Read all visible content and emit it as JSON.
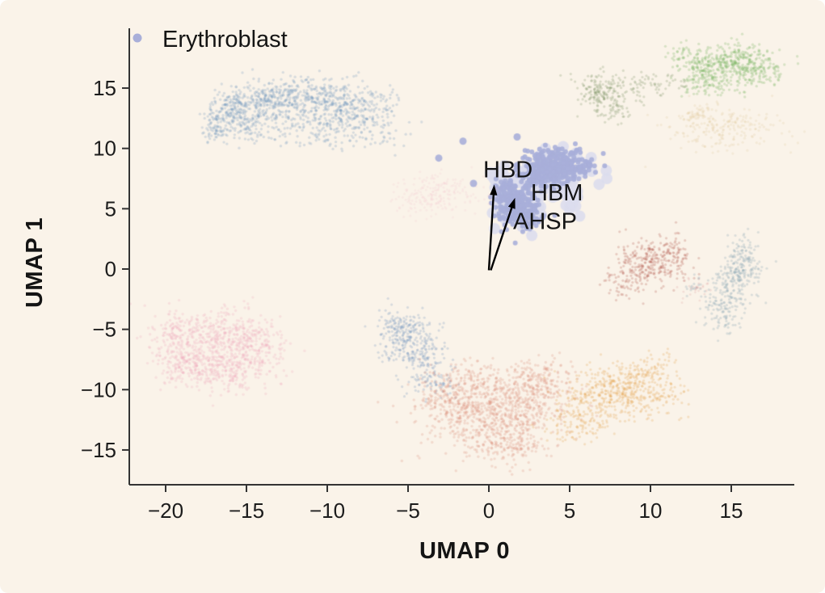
{
  "figure": {
    "background_color": "#faf3e9",
    "spine_color": "#333333"
  },
  "legend": {
    "items": [
      {
        "label": "Erythroblast",
        "marker_color": "#a9afd9"
      }
    ]
  },
  "chart_data": {
    "type": "scatter",
    "title": "",
    "xlabel": "UMAP 0",
    "ylabel": "UMAP 1",
    "xlim": [
      -22.3,
      18.9
    ],
    "ylim": [
      -17.9,
      20.0
    ],
    "grid": false,
    "legend_position": "upper-left",
    "x_ticks": {
      "values": [
        -20,
        -15,
        -10,
        -5,
        0,
        5,
        10,
        15
      ],
      "labels": [
        "−20",
        "−15",
        "−10",
        "−5",
        "0",
        "5",
        "10",
        "15"
      ]
    },
    "y_ticks": {
      "values": [
        15,
        10,
        5,
        0,
        -5,
        -10,
        -15
      ],
      "labels": [
        "15",
        "10",
        "5",
        "0",
        "−5",
        "−10",
        "−15"
      ]
    },
    "annotations": [
      {
        "label": "HBD",
        "x": -0.35,
        "y": 7.6
      },
      {
        "label": "HBM",
        "x": 2.6,
        "y": 5.7
      },
      {
        "label": "AHSP",
        "x": 1.5,
        "y": 3.3
      }
    ],
    "arrows": [
      {
        "x1": 0.0,
        "y1": -0.1,
        "x2": 0.33,
        "y2": 7.0
      },
      {
        "x1": 0.12,
        "y1": -0.1,
        "x2": 1.62,
        "y2": 5.9
      }
    ],
    "clusters": [
      {
        "name": "erythroblast-halo",
        "highlighted": true,
        "color": "#dbdded",
        "alpha": 0.9,
        "radius": 7,
        "blobs": [
          [
            3.9,
            8.3,
            1.4,
            0.9,
            60
          ],
          [
            1.7,
            5.2,
            0.9,
            1.1,
            40
          ],
          [
            3.0,
            6.5,
            1.0,
            0.9,
            30
          ],
          [
            5.0,
            5.9,
            0.6,
            0.5,
            12
          ],
          [
            0.6,
            7.6,
            0.5,
            0.5,
            15
          ]
        ]
      },
      {
        "name": "erythroblast",
        "highlighted": true,
        "color": "#a9afd9",
        "alpha": 0.9,
        "radius": 3,
        "blobs": [
          [
            4.1,
            8.5,
            1.1,
            0.65,
            350
          ],
          [
            2.9,
            7.6,
            0.5,
            0.5,
            60
          ],
          [
            1.7,
            5.3,
            0.7,
            1.0,
            220
          ],
          [
            2.5,
            4.3,
            0.5,
            0.4,
            40
          ],
          [
            1.1,
            6.6,
            0.35,
            0.4,
            40
          ]
        ],
        "outliers": [
          [
            -1.6,
            10.6
          ],
          [
            -3.1,
            9.2
          ],
          [
            -0.95,
            7.1
          ],
          [
            1.75,
            10.95
          ]
        ]
      },
      {
        "name": "background-cluster-blue-arc",
        "highlighted": false,
        "color": "#5b87b8",
        "alpha": 0.22,
        "radius": 1.7,
        "blobs": [
          [
            -16.9,
            11.9,
            0.35,
            0.8,
            90
          ],
          [
            -15.8,
            13.1,
            0.7,
            0.9,
            140
          ],
          [
            -14.0,
            14.0,
            1.1,
            0.8,
            180
          ],
          [
            -11.5,
            14.4,
            1.5,
            0.8,
            220
          ],
          [
            -9.0,
            13.8,
            1.3,
            0.9,
            180
          ],
          [
            -7.0,
            12.7,
            1.0,
            1.1,
            110
          ],
          [
            -12.5,
            12.6,
            1.8,
            0.9,
            160
          ],
          [
            -9.8,
            12.0,
            1.5,
            0.9,
            90
          ],
          [
            -15.0,
            11.8,
            0.7,
            0.9,
            60
          ],
          [
            -11.0,
            10.8,
            2.0,
            0.6,
            40
          ]
        ]
      },
      {
        "name": "background-cluster-green",
        "highlighted": false,
        "color": "#74b25e",
        "alpha": 0.26,
        "radius": 1.7,
        "blobs": [
          [
            15.0,
            17.2,
            1.2,
            0.75,
            260
          ],
          [
            13.3,
            16.2,
            0.8,
            0.7,
            110
          ],
          [
            16.6,
            16.4,
            0.9,
            0.8,
            120
          ],
          [
            12.4,
            17.6,
            0.7,
            0.5,
            60
          ],
          [
            14.0,
            15.3,
            1.0,
            0.5,
            50
          ]
        ]
      },
      {
        "name": "background-cluster-olive",
        "highlighted": false,
        "color": "#7d9465",
        "alpha": 0.26,
        "radius": 1.6,
        "blobs": [
          [
            6.8,
            14.8,
            0.7,
            0.8,
            130
          ],
          [
            7.5,
            13.4,
            0.9,
            0.7,
            70
          ],
          [
            8.7,
            15.2,
            1.1,
            0.5,
            50
          ],
          [
            10.5,
            15.4,
            1.3,
            0.5,
            40
          ]
        ]
      },
      {
        "name": "background-cluster-tan-faint",
        "highlighted": false,
        "color": "#d9bb84",
        "alpha": 0.18,
        "radius": 1.6,
        "blobs": [
          [
            14.8,
            11.7,
            1.7,
            1.0,
            200
          ],
          [
            13.2,
            12.5,
            0.8,
            0.6,
            60
          ]
        ]
      },
      {
        "name": "background-cluster-dusty-red",
        "highlighted": false,
        "color": "#b2574e",
        "alpha": 0.26,
        "radius": 1.6,
        "blobs": [
          [
            10.0,
            0.7,
            1.1,
            0.95,
            260
          ],
          [
            8.6,
            -0.9,
            0.9,
            0.8,
            70
          ],
          [
            11.5,
            1.5,
            0.6,
            0.5,
            40
          ]
        ]
      },
      {
        "name": "background-cluster-bluegray",
        "highlighted": false,
        "color": "#8aa4b4",
        "alpha": 0.28,
        "radius": 1.6,
        "blobs": [
          [
            15.7,
            0.4,
            0.6,
            1.1,
            170
          ],
          [
            15.0,
            -1.8,
            0.7,
            1.2,
            130
          ],
          [
            14.3,
            -3.7,
            0.55,
            0.9,
            70
          ],
          [
            12.8,
            -1.6,
            0.4,
            0.4,
            20
          ]
        ]
      },
      {
        "name": "background-cluster-pink",
        "highlighted": false,
        "color": "#ec9fb6",
        "alpha": 0.22,
        "radius": 1.7,
        "blobs": [
          [
            -17.3,
            -6.3,
            1.7,
            1.4,
            420
          ],
          [
            -15.3,
            -5.4,
            1.2,
            1.1,
            170
          ],
          [
            -18.9,
            -8.0,
            0.9,
            1.0,
            130
          ],
          [
            -16.2,
            -8.6,
            1.4,
            0.9,
            170
          ],
          [
            -14.2,
            -7.0,
            1.0,
            1.0,
            90
          ],
          [
            -19.5,
            -5.0,
            0.6,
            0.8,
            60
          ]
        ]
      },
      {
        "name": "background-cluster-small-blue",
        "highlighted": false,
        "color": "#6f94bf",
        "alpha": 0.26,
        "radius": 1.6,
        "blobs": [
          [
            -4.9,
            -6.0,
            0.9,
            1.1,
            220
          ],
          [
            -3.9,
            -8.0,
            0.8,
            1.0,
            110
          ],
          [
            -5.6,
            -4.6,
            0.7,
            0.7,
            70
          ],
          [
            -3.0,
            -9.5,
            0.6,
            0.6,
            40
          ]
        ]
      },
      {
        "name": "background-cluster-salmon",
        "highlighted": false,
        "color": "#d88a74",
        "alpha": 0.24,
        "radius": 1.7,
        "blobs": [
          [
            0.0,
            -12.0,
            2.0,
            1.5,
            600
          ],
          [
            2.2,
            -10.3,
            1.4,
            1.1,
            220
          ],
          [
            -2.2,
            -10.6,
            1.2,
            1.1,
            170
          ],
          [
            1.0,
            -14.6,
            1.6,
            0.8,
            150
          ],
          [
            3.6,
            -9.0,
            1.0,
            0.9,
            90
          ],
          [
            -1.0,
            -8.8,
            0.8,
            0.7,
            60
          ]
        ]
      },
      {
        "name": "background-cluster-orange",
        "highlighted": false,
        "color": "#e3a24f",
        "alpha": 0.26,
        "radius": 1.6,
        "blobs": [
          [
            8.0,
            -10.0,
            1.5,
            1.2,
            380
          ],
          [
            6.2,
            -11.6,
            1.0,
            0.9,
            110
          ],
          [
            9.9,
            -8.6,
            0.9,
            0.8,
            90
          ],
          [
            5.2,
            -13.3,
            1.0,
            0.7,
            70
          ],
          [
            10.8,
            -10.5,
            0.7,
            0.6,
            40
          ]
        ]
      },
      {
        "name": "background-cluster-pink-mist",
        "highlighted": false,
        "color": "#f0bcc8",
        "alpha": 0.16,
        "radius": 1.5,
        "blobs": [
          [
            -3.0,
            6.3,
            1.2,
            0.85,
            170
          ],
          [
            -4.6,
            5.6,
            0.7,
            0.6,
            50
          ]
        ]
      },
      {
        "name": "background-speckle-red",
        "highlighted": false,
        "color": "#d98a8a",
        "alpha": 0.2,
        "radius": 1.4,
        "blobs": [
          [
            12.7,
            -1.7,
            0.5,
            0.5,
            30
          ]
        ]
      }
    ]
  }
}
